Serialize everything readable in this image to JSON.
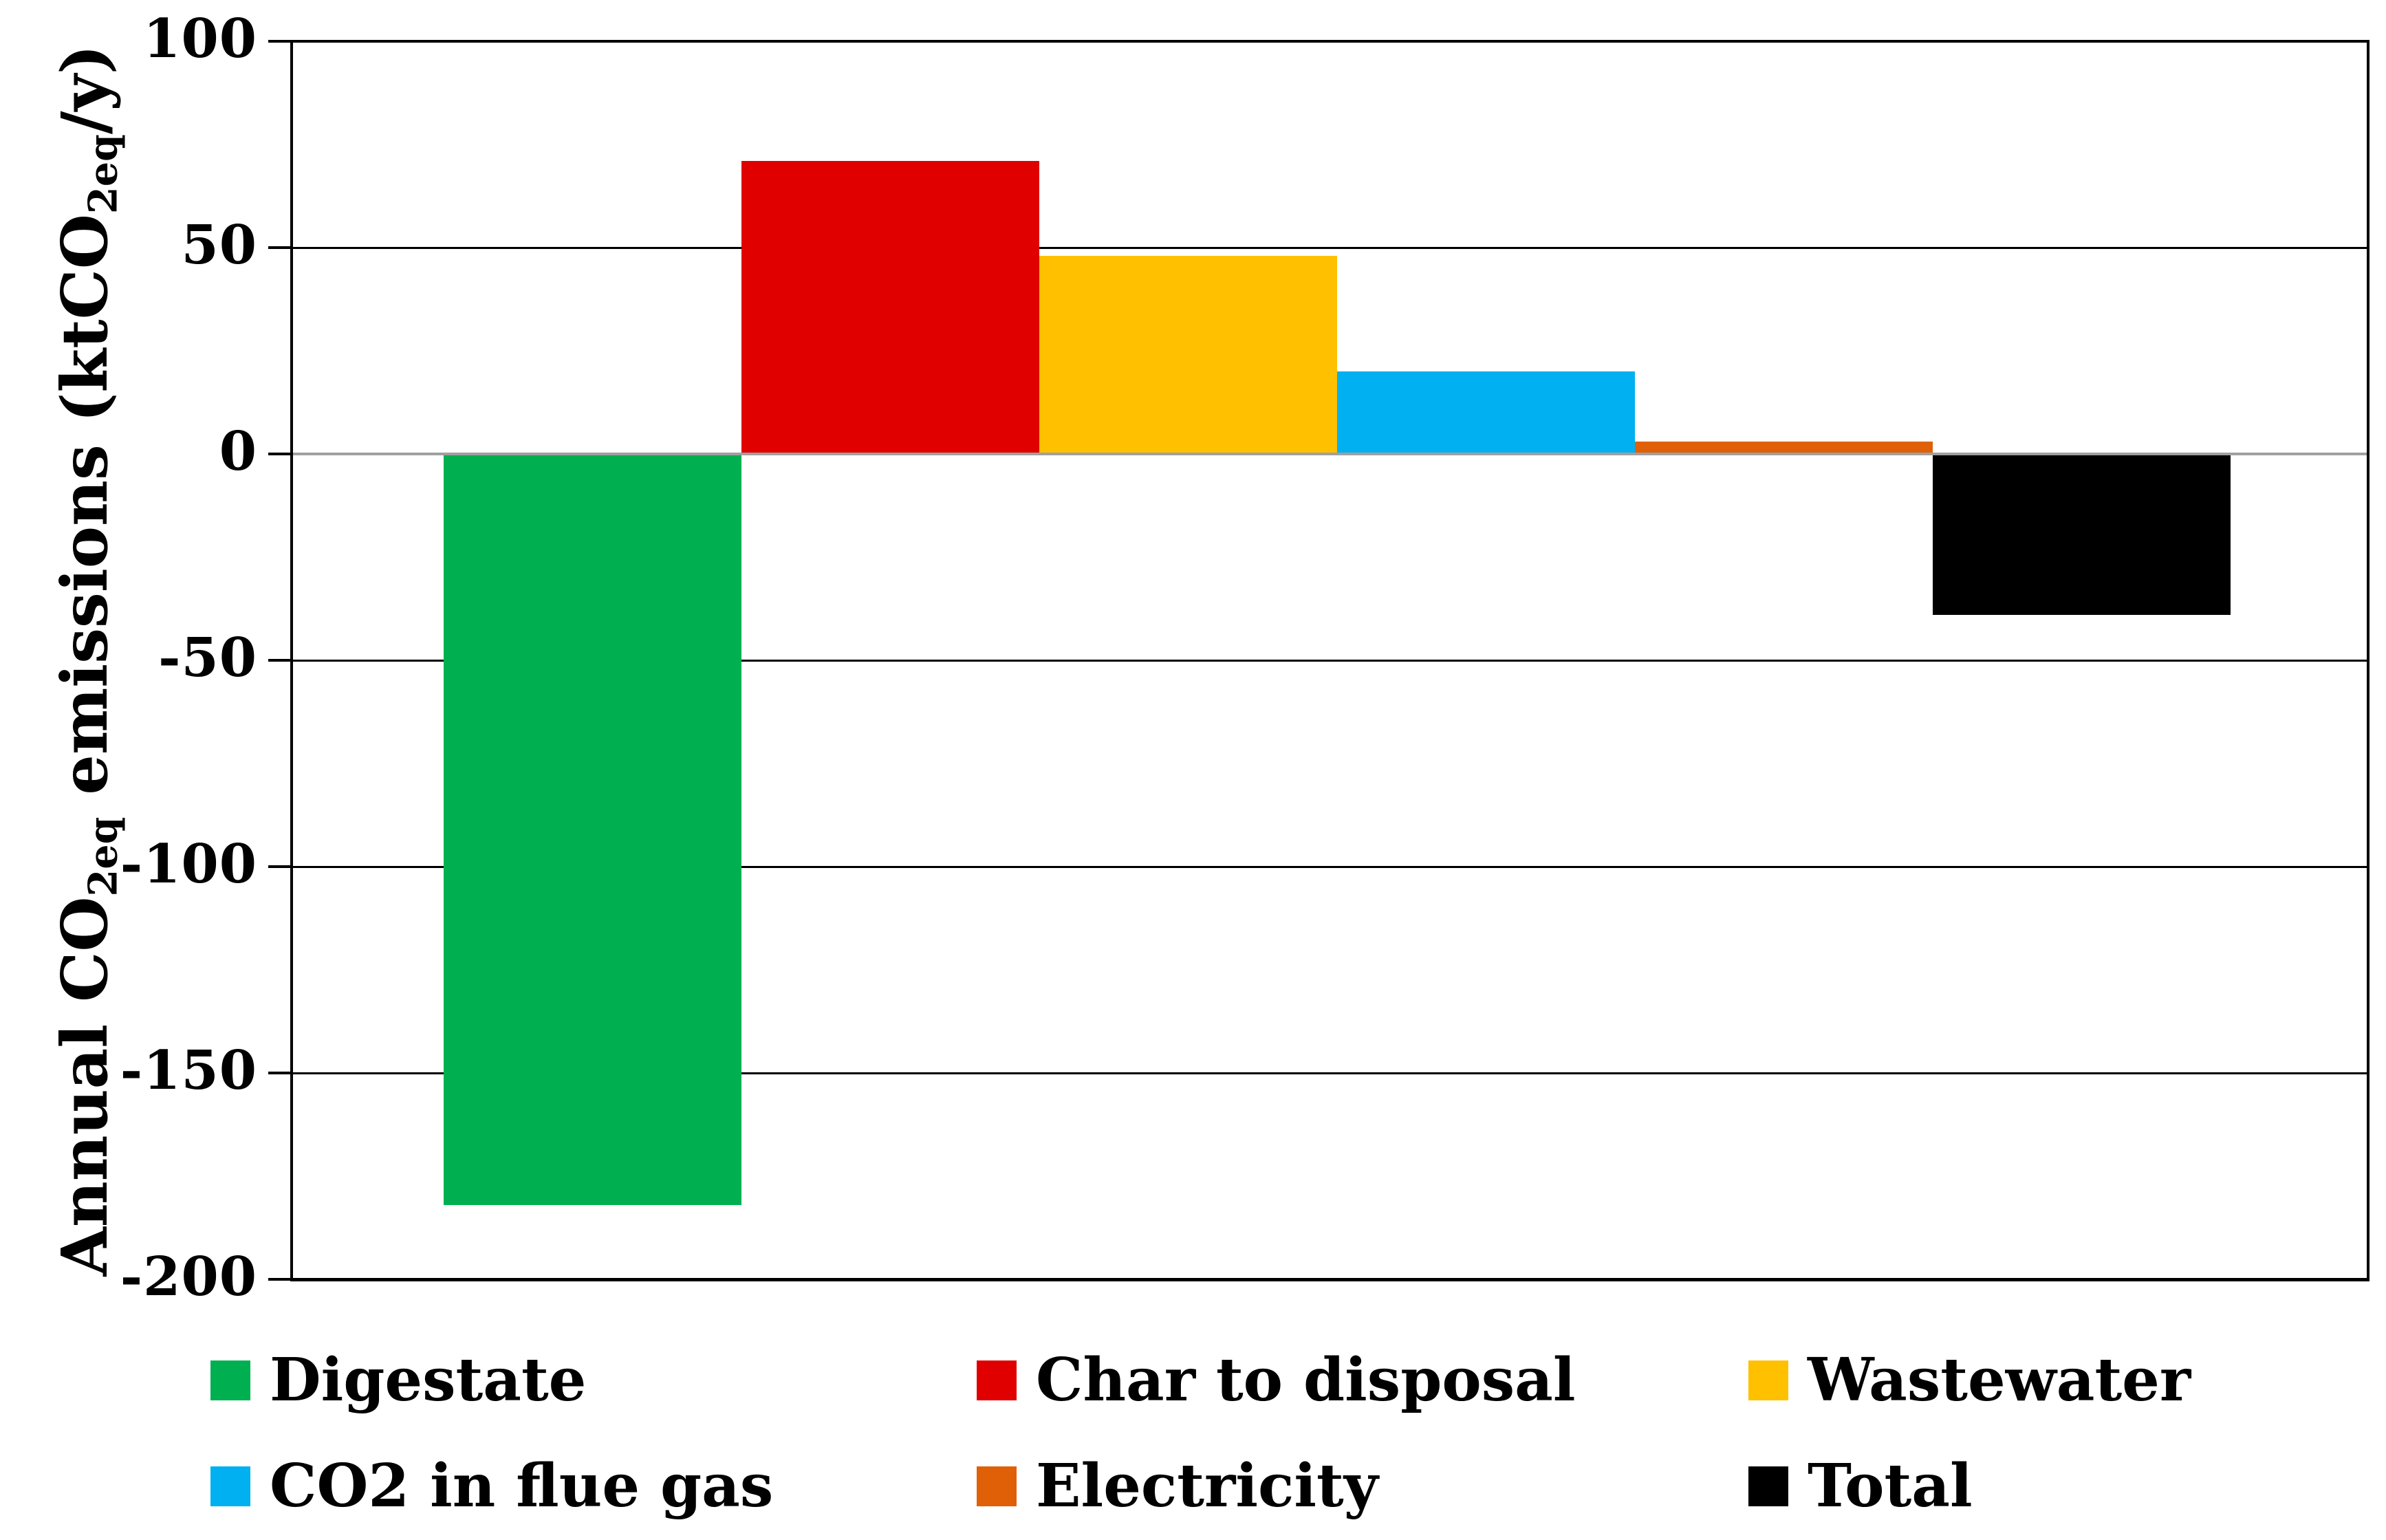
{
  "chart_data": {
    "type": "bar",
    "title": "",
    "xlabel": "",
    "ylabel": "Annual CO2eq emissions (ktCO2eq/y)",
    "ylabel_parts": [
      {
        "text": "Annual CO"
      },
      {
        "text": "2eq",
        "sub": true
      },
      {
        "text": " emissions (ktCO"
      },
      {
        "text": "2eq",
        "sub": true
      },
      {
        "text": "/y)"
      }
    ],
    "categories": [
      "Digestate",
      "Char to disposal",
      "Wastewater",
      "CO2 in flue gas",
      "Electricity",
      "Total"
    ],
    "values": [
      -182,
      71,
      48,
      20,
      3,
      -39
    ],
    "series": [
      {
        "name": "Digestate",
        "value": -182,
        "color": "#00B050"
      },
      {
        "name": "Char to disposal",
        "value": 71,
        "color": "#E00000"
      },
      {
        "name": "Wastewater",
        "value": 48,
        "color": "#FFC000"
      },
      {
        "name": "CO2 in flue gas",
        "value": 20,
        "color": "#00B0F0"
      },
      {
        "name": "Electricity",
        "value": 3,
        "color": "#DF6007"
      },
      {
        "name": "Total",
        "value": -39,
        "color": "#000000"
      }
    ],
    "ylim": [
      -200,
      100
    ],
    "yticks": [
      100,
      50,
      0,
      -50,
      -100,
      -150,
      -200
    ],
    "grid": true,
    "gridline_color": "#000000",
    "zero_line_color": "#A0A0A0",
    "legend_position": "bottom",
    "legend_rows": [
      [
        "Digestate",
        "Char to disposal",
        "Wastewater"
      ],
      [
        "CO2 in flue gas",
        "Electricity",
        "Total"
      ]
    ]
  }
}
